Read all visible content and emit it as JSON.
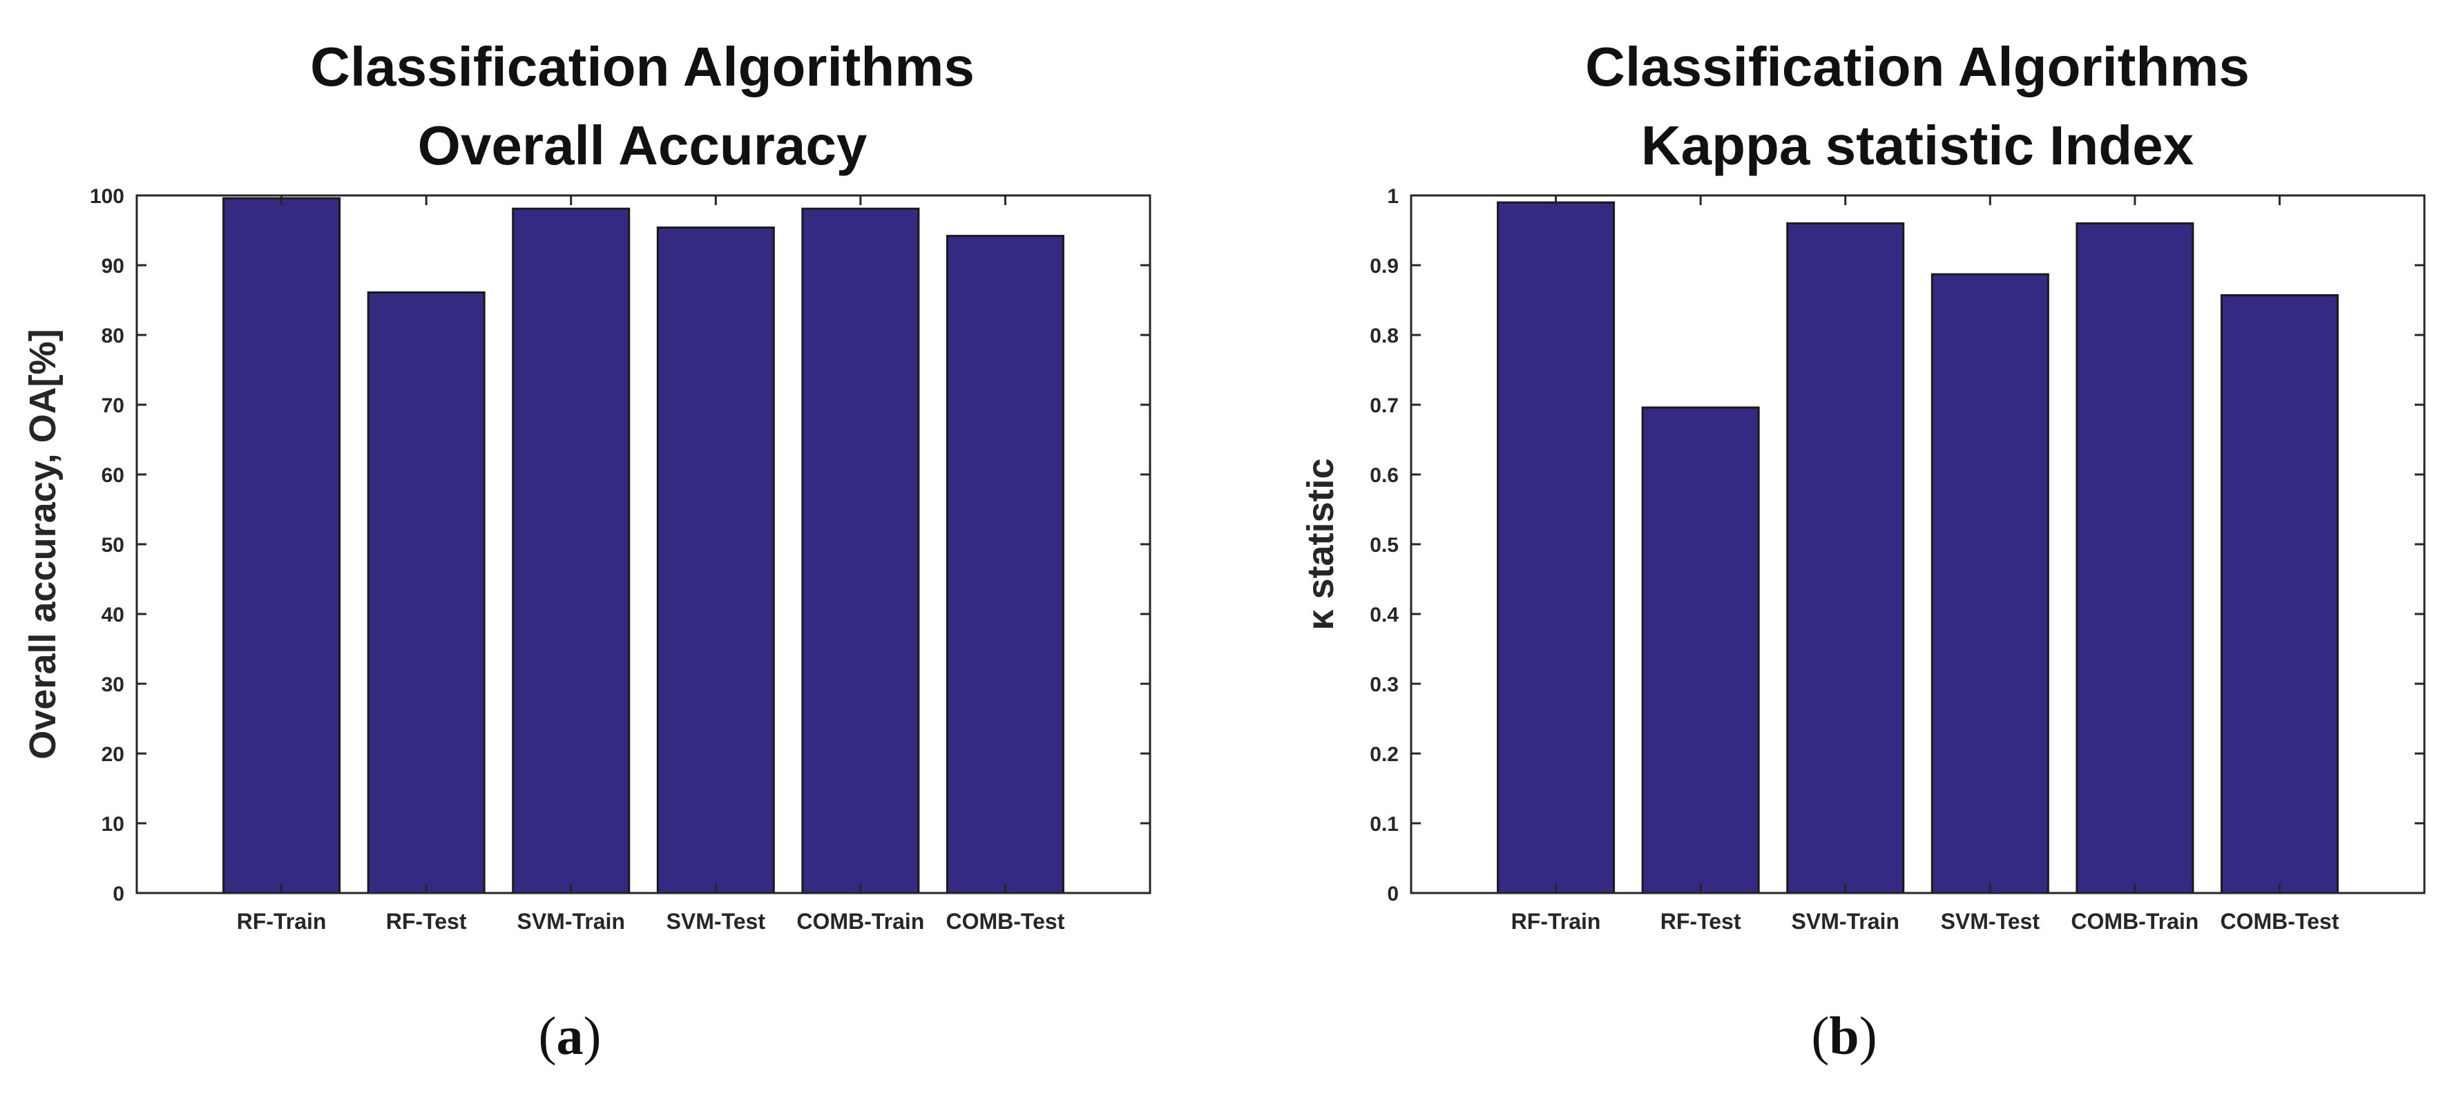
{
  "style": {
    "bar_color": "#342a82",
    "bar_edge": "#1a1a1a",
    "text_color": "#262626",
    "axis_color": "#262626"
  },
  "chart_data": [
    {
      "type": "bar",
      "title": [
        "Classification Algorithms",
        "Overall Accuracy"
      ],
      "xlabel": "",
      "ylabel": "Overall accuracy, OA[%]",
      "categories": [
        "RF-Train",
        "RF-Test",
        "SVM-Train",
        "SVM-Test",
        "COMB-Train",
        "COMB-Test"
      ],
      "values": [
        99.6,
        86.1,
        98.1,
        95.4,
        98.1,
        94.2
      ],
      "ylim": [
        0,
        100
      ],
      "yticks": [
        "0",
        "10",
        "20",
        "30",
        "40",
        "50",
        "60",
        "70",
        "80",
        "90",
        "100"
      ],
      "grid": false,
      "caption": "a"
    },
    {
      "type": "bar",
      "title": [
        "Classification Algorithms",
        "Kappa statistic Index"
      ],
      "xlabel": "",
      "ylabel": "κ statistic",
      "categories": [
        "RF-Train",
        "RF-Test",
        "SVM-Train",
        "SVM-Test",
        "COMB-Train",
        "COMB-Test"
      ],
      "values": [
        0.99,
        0.696,
        0.96,
        0.887,
        0.96,
        0.857
      ],
      "ylim": [
        0,
        1
      ],
      "yticks": [
        "0",
        "0.1",
        "0.2",
        "0.3",
        "0.4",
        "0.5",
        "0.6",
        "0.7",
        "0.8",
        "0.9",
        "1"
      ],
      "grid": false,
      "caption": "b"
    }
  ]
}
